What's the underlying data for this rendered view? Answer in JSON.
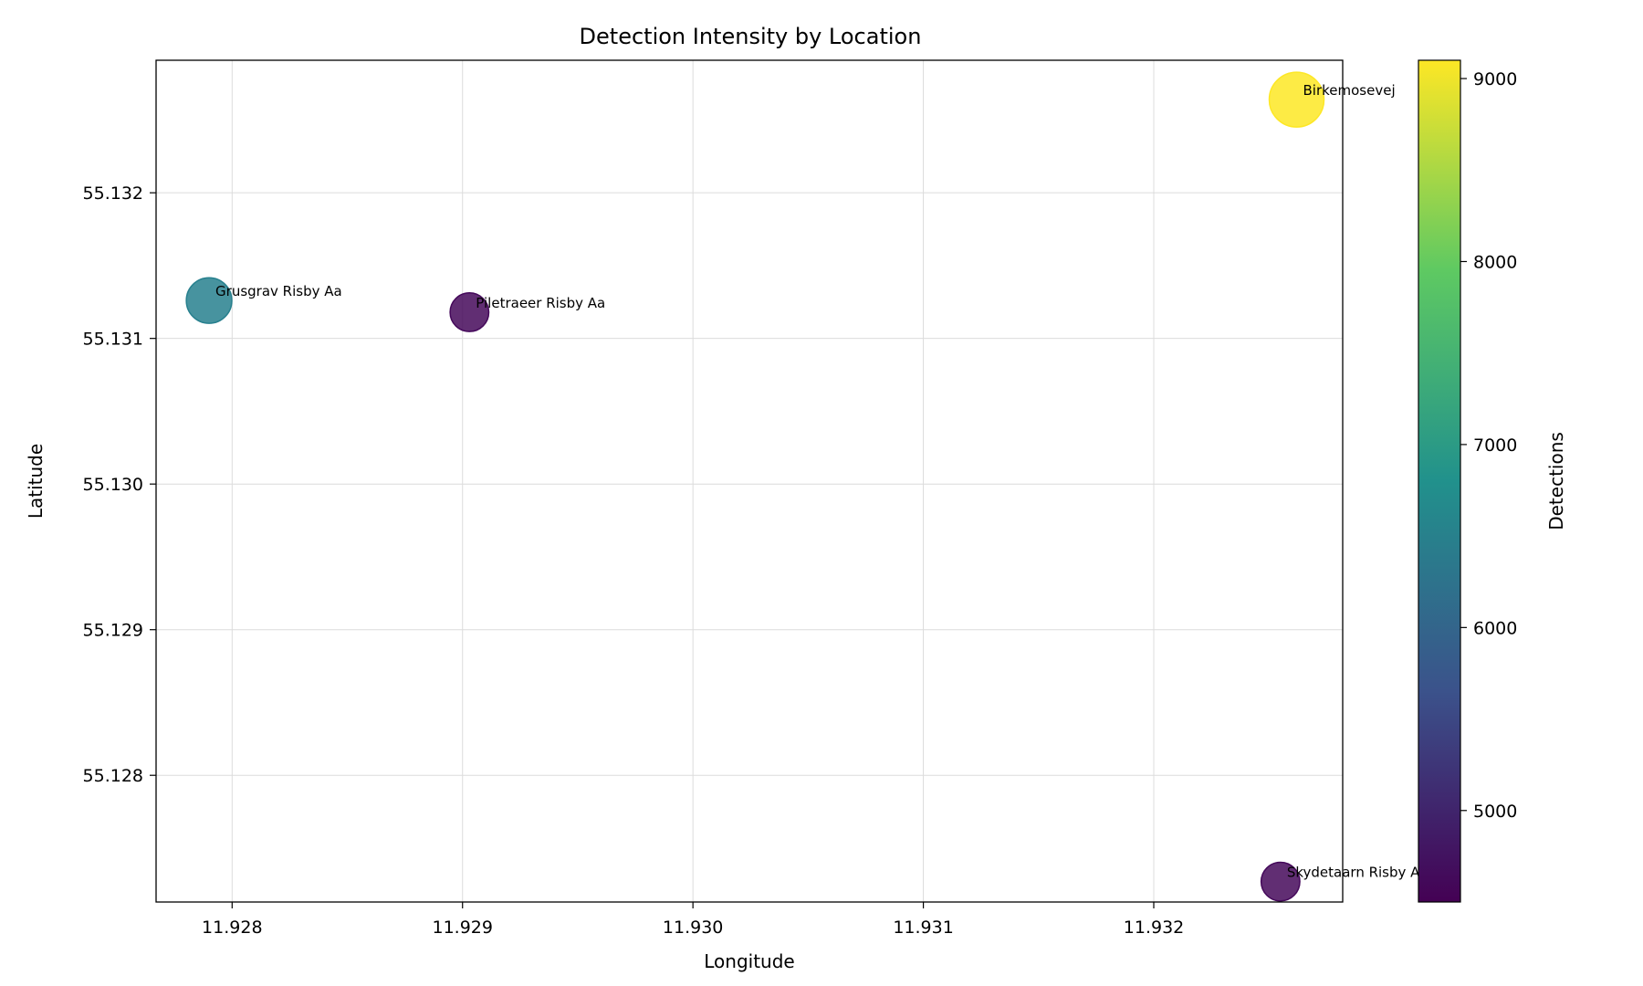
{
  "chart_data": {
    "type": "scatter",
    "title": "Detection Intensity by Location",
    "xlabel": "Longitude",
    "ylabel": "Latitude",
    "colorbar_label": "Detections",
    "colormap": "viridis",
    "grid": true,
    "xlim": [
      11.92767,
      11.93282
    ],
    "ylim": [
      55.12713,
      55.13291
    ],
    "xticks": [
      11.928,
      11.929,
      11.93,
      11.931,
      11.932
    ],
    "xtick_labels": [
      "11.928",
      "11.929",
      "11.930",
      "11.931",
      "11.932"
    ],
    "yticks": [
      55.128,
      55.129,
      55.13,
      55.131,
      55.132
    ],
    "ytick_labels": [
      "55.128",
      "55.129",
      "55.130",
      "55.131",
      "55.132"
    ],
    "color_range": [
      4500,
      9100
    ],
    "colorbar_ticks": [
      5000,
      6000,
      7000,
      8000,
      9000
    ],
    "colorbar_tick_labels": [
      "5000",
      "6000",
      "7000",
      "8000",
      "9000"
    ],
    "points": [
      {
        "label": "Grusgrav Risby Aa",
        "x": 11.9279,
        "y": 55.13126,
        "detections": 6500
      },
      {
        "label": "Piletraeer Risby Aa",
        "x": 11.92903,
        "y": 55.13118,
        "detections": 4600
      },
      {
        "label": "Birkemosevej",
        "x": 11.93262,
        "y": 55.13264,
        "detections": 9100
      },
      {
        "label": "Skydetaarn Risby Aa",
        "x": 11.93255,
        "y": 55.12727,
        "detections": 4600
      }
    ]
  }
}
